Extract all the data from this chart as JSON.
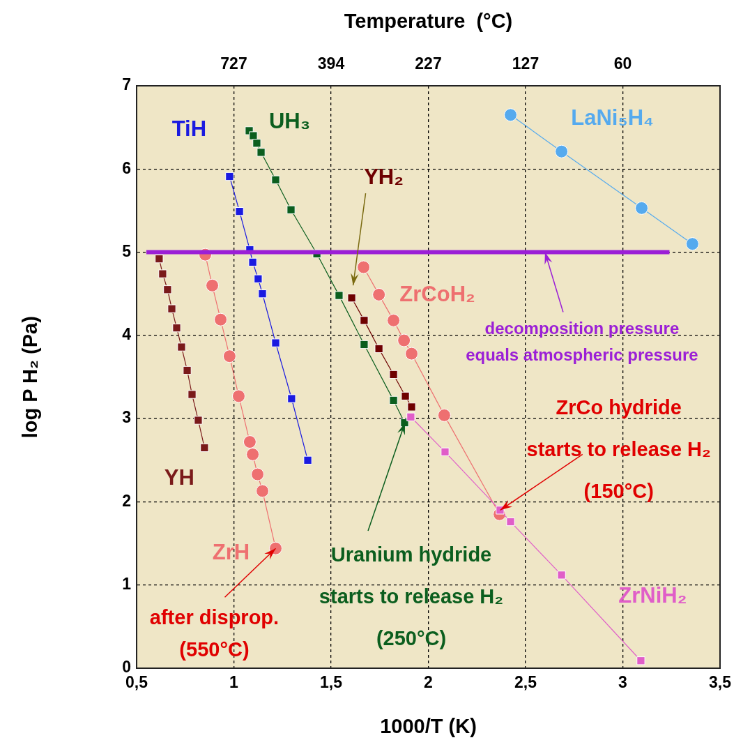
{
  "chart_data": {
    "type": "scatter",
    "xlabel": "1000/T (K)",
    "ylabel": "log P H₂ (Pa)",
    "x2label": "Temperature  (°C)",
    "xlim": [
      0.5,
      3.5
    ],
    "xticks": [
      {
        "value": 0.5,
        "label": "0,5"
      },
      1,
      {
        "value": 1.5,
        "label": "1,5"
      },
      2,
      {
        "value": 2.5,
        "label": "2,5"
      },
      3,
      {
        "value": 3.5,
        "label": "3,5"
      }
    ],
    "ylim": [
      0,
      7
    ],
    "yticks": [
      0,
      1,
      2,
      3,
      4,
      5,
      6,
      7
    ],
    "grid": true,
    "line_style": "solid",
    "series": [
      {
        "name": "YH",
        "type": "line",
        "marker": "square",
        "color": "#7a1a1a",
        "x": [
          0.616,
          0.634,
          0.659,
          0.681,
          0.706,
          0.731,
          0.76,
          0.785,
          0.817,
          0.849
        ],
        "values": [
          4.92,
          4.74,
          4.55,
          4.32,
          4.09,
          3.86,
          3.58,
          3.29,
          2.98,
          2.65
        ]
      },
      {
        "name": "ZrH",
        "type": "line",
        "marker": "circle",
        "color": "#ee7070",
        "x": [
          0.853,
          0.889,
          0.932,
          0.978,
          1.025,
          1.082,
          1.097,
          1.122,
          1.147,
          1.215
        ],
        "values": [
          4.97,
          4.6,
          4.19,
          3.75,
          3.27,
          2.72,
          2.57,
          2.33,
          2.13,
          1.44
        ]
      },
      {
        "name": "TiH",
        "type": "line",
        "marker": "square",
        "color": "#1a1ae0",
        "x": [
          0.978,
          1.029,
          1.082,
          1.097,
          1.125,
          1.147,
          1.215,
          1.297,
          1.38
        ],
        "values": [
          5.91,
          5.49,
          5.03,
          4.88,
          4.68,
          4.5,
          3.91,
          3.24,
          2.5
        ]
      },
      {
        "name": "UH₃",
        "type": "line",
        "marker": "square",
        "color": "#0b5e1e",
        "x": [
          1.079,
          1.1,
          1.118,
          1.14,
          1.215,
          1.294,
          1.427,
          1.541,
          1.67,
          1.821,
          1.878
        ],
        "values": [
          6.46,
          6.4,
          6.31,
          6.2,
          5.87,
          5.51,
          4.98,
          4.48,
          3.89,
          3.22,
          2.95
        ]
      },
      {
        "name": "YH₂",
        "type": "line",
        "marker": "square",
        "color": "#6e0000",
        "x": [
          1.606,
          1.67,
          1.746,
          1.821,
          1.882,
          1.914
        ],
        "values": [
          4.45,
          4.18,
          3.84,
          3.53,
          3.27,
          3.14
        ]
      },
      {
        "name": "ZrCoH₂",
        "type": "line",
        "marker": "circle",
        "color": "#ee7070",
        "x": [
          1.667,
          1.746,
          1.821,
          1.875,
          1.914,
          2.082,
          2.366
        ],
        "values": [
          4.82,
          4.49,
          4.18,
          3.94,
          3.78,
          3.04,
          1.85
        ]
      },
      {
        "name": "ZrNiH₂",
        "type": "line",
        "marker": "square",
        "color": "#e05ec8",
        "x": [
          1.91,
          2.086,
          2.369,
          2.423,
          2.685,
          3.093
        ],
        "values": [
          3.02,
          2.6,
          1.9,
          1.76,
          1.12,
          0.09
        ]
      },
      {
        "name": "LaNi₅H₄",
        "type": "line",
        "marker": "circle",
        "color": "#55aaee",
        "x": [
          2.423,
          2.685,
          3.097,
          3.358
        ],
        "values": [
          6.65,
          6.21,
          5.53,
          5.1
        ]
      },
      {
        "type": "line",
        "marker": "none",
        "color": "#9b1fd6",
        "x": [
          0.55,
          3.24
        ],
        "values": [
          5,
          5
        ]
      }
    ],
    "annotations": [
      {
        "text": "decomposition pressure\nequals atmospheric pressure",
        "x": 2.6,
        "y": 5
      },
      {
        "text": "ZrCo hydride\nstarts to release H₂\n(150°C)",
        "x": 2.37,
        "y": 1.9
      },
      {
        "text": "Uranium hydride\nstarts to release H₂\n(250°C)",
        "x": 1.88,
        "y": 2.95
      },
      {
        "text": "after disprop.\n(550°C)",
        "x": 1.215,
        "y": 1.44
      },
      "727",
      "394",
      "227",
      "127",
      "60"
    ]
  }
}
